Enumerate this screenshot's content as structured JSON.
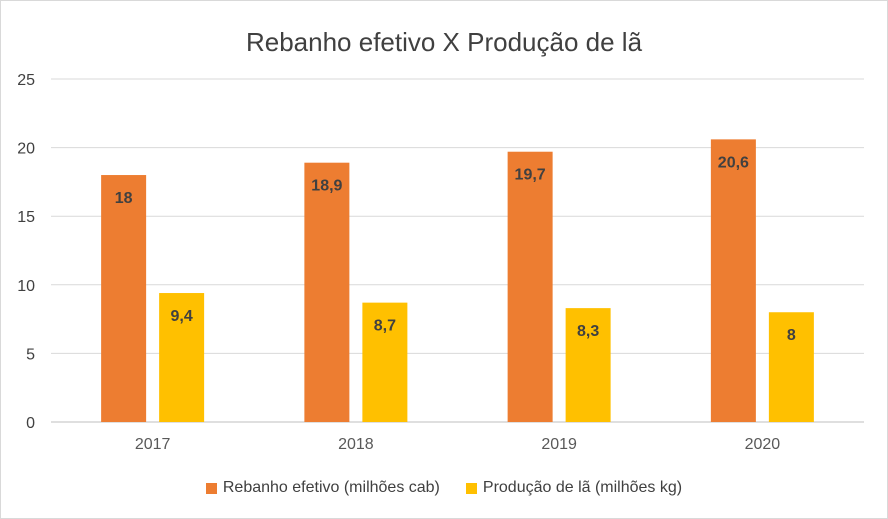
{
  "chart_data": {
    "type": "bar",
    "title": "Rebanho efetivo X Produção de lã",
    "categories": [
      "2017",
      "2018",
      "2019",
      "2020"
    ],
    "series": [
      {
        "name": "Rebanho efetivo (milhões cab)",
        "values": [
          18,
          18.9,
          19.7,
          20.6
        ],
        "labels": [
          "18",
          "18,9",
          "19,7",
          "20,6"
        ],
        "color": "#ed7d31"
      },
      {
        "name": "Produção de lã (milhões kg)",
        "values": [
          9.4,
          8.7,
          8.3,
          8
        ],
        "labels": [
          "9,4",
          "8,7",
          "8,3",
          "8"
        ],
        "color": "#ffc000"
      }
    ],
    "yticks": [
      "0",
      "5",
      "10",
      "15",
      "20",
      "25"
    ],
    "ylim": [
      0,
      25
    ],
    "grid": true,
    "legend": "bottom"
  }
}
